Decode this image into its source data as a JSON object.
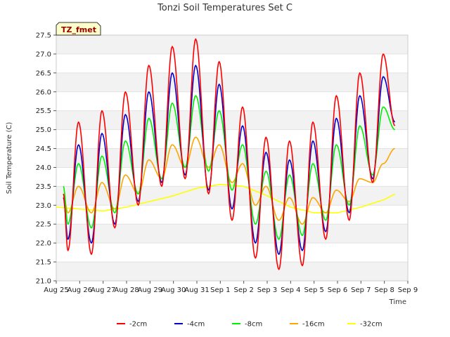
{
  "chart_data": {
    "type": "line",
    "title": "Tonzi Soil Temperatures Set C",
    "xlabel": "Time",
    "ylabel": "Soil Temperature (C)",
    "badge": "TZ_fmet",
    "ylim": [
      21.0,
      27.5
    ],
    "yticks": [
      "21.0",
      "21.5",
      "22.0",
      "22.5",
      "23.0",
      "23.5",
      "24.0",
      "24.5",
      "25.0",
      "25.5",
      "26.0",
      "26.5",
      "27.0",
      "27.5"
    ],
    "xlim": [
      "2023-08-25",
      "2023-09-09"
    ],
    "xticks": [
      "Aug 25",
      "Aug 26",
      "Aug 27",
      "Aug 28",
      "Aug 29",
      "Aug 30",
      "Aug 31",
      "Sep 1",
      "Sep 2",
      "Sep 3",
      "Sep 4",
      "Sep 5",
      "Sep 6",
      "Sep 7",
      "Sep 8",
      "Sep 9"
    ],
    "grid": "horizontal bands",
    "legend_position": "bottom",
    "series": [
      {
        "name": "-2cm",
        "color": "#ff0000",
        "min": [
          21.8,
          21.7,
          22.4,
          23.0,
          23.5,
          23.7,
          23.3,
          22.6,
          21.6,
          21.3,
          21.4,
          22.1,
          22.6,
          23.6
        ],
        "max": [
          25.2,
          25.5,
          26.0,
          26.7,
          27.2,
          27.4,
          26.8,
          25.6,
          24.8,
          24.7,
          25.2,
          25.9,
          26.5,
          27.0
        ],
        "start": 23.3,
        "end": 25.1
      },
      {
        "name": "-4cm",
        "color": "#0000cc",
        "min": [
          22.1,
          22.0,
          22.5,
          23.1,
          23.6,
          23.8,
          23.4,
          22.9,
          22.0,
          21.7,
          21.8,
          22.3,
          22.8,
          23.7
        ],
        "max": [
          24.6,
          24.9,
          25.4,
          26.0,
          26.5,
          26.7,
          26.2,
          25.1,
          24.4,
          24.2,
          24.7,
          25.3,
          25.9,
          26.4
        ],
        "start": 23.2,
        "end": 25.2
      },
      {
        "name": "-8cm",
        "color": "#00ee00",
        "min": [
          22.5,
          22.4,
          22.8,
          23.3,
          23.7,
          24.0,
          23.9,
          23.4,
          22.5,
          22.1,
          22.2,
          22.6,
          23.0,
          23.8
        ],
        "max": [
          24.1,
          24.3,
          24.7,
          25.3,
          25.7,
          25.9,
          25.5,
          24.6,
          23.9,
          23.8,
          24.1,
          24.6,
          25.1,
          25.6
        ],
        "start": 23.5,
        "end": 25.0
      },
      {
        "name": "-16cm",
        "color": "#ffa500",
        "min": [
          22.8,
          22.8,
          22.9,
          23.3,
          23.7,
          24.0,
          24.0,
          23.6,
          23.0,
          22.6,
          22.5,
          22.8,
          23.1,
          23.6
        ],
        "max": [
          23.5,
          23.6,
          23.8,
          24.2,
          24.6,
          24.8,
          24.6,
          24.1,
          23.5,
          23.2,
          23.2,
          23.4,
          23.7,
          24.1
        ],
        "start": 23.3,
        "end": 24.5
      },
      {
        "name": "-32cm",
        "color": "#ffff00",
        "points": [
          [
            0,
            22.95
          ],
          [
            1,
            22.9
          ],
          [
            2,
            22.85
          ],
          [
            3,
            22.95
          ],
          [
            4,
            23.1
          ],
          [
            5,
            23.25
          ],
          [
            6,
            23.45
          ],
          [
            7,
            23.55
          ],
          [
            8,
            23.5
          ],
          [
            9,
            23.25
          ],
          [
            10,
            22.95
          ],
          [
            11,
            22.8
          ],
          [
            12,
            22.8
          ],
          [
            13,
            22.95
          ],
          [
            14,
            23.15
          ],
          [
            14.45,
            23.3
          ]
        ]
      }
    ]
  }
}
